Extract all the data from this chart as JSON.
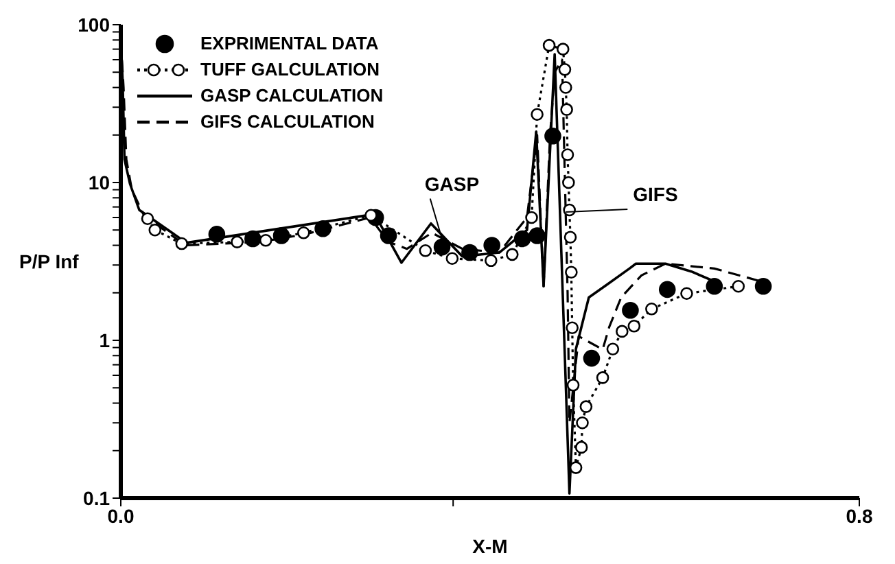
{
  "chart_data": {
    "type": "line",
    "xlabel": "X-M",
    "ylabel": "P/P Inf",
    "log": "y",
    "grid": false,
    "legend": "top left",
    "xlim": [
      0,
      0.8
    ],
    "xticks": [
      {
        "value": 0,
        "label": "0.0"
      },
      {
        "value": 0.36,
        "label": null
      },
      {
        "value": 0.8,
        "label": "0.8"
      }
    ],
    "ylim": [
      0.1,
      100
    ],
    "yticks": [
      0.1,
      {
        "value": 0.2,
        "label": null
      },
      {
        "value": 0.3,
        "label": null
      },
      {
        "value": 0.4,
        "label": null
      },
      {
        "value": 0.5,
        "label": null
      },
      {
        "value": 0.6,
        "label": null
      },
      {
        "value": 0.7,
        "label": null
      },
      {
        "value": 0.8,
        "label": null
      },
      {
        "value": 0.9,
        "label": null
      },
      1,
      {
        "value": 2,
        "label": null
      },
      {
        "value": 3,
        "label": null
      },
      {
        "value": 4,
        "label": null
      },
      {
        "value": 5,
        "label": null
      },
      {
        "value": 6,
        "label": null
      },
      {
        "value": 7,
        "label": null
      },
      {
        "value": 8,
        "label": null
      },
      {
        "value": 9,
        "label": null
      },
      10,
      {
        "value": 20,
        "label": null
      },
      {
        "value": 30,
        "label": null
      },
      {
        "value": 40,
        "label": null
      },
      {
        "value": 50,
        "label": null
      },
      {
        "value": 60,
        "label": null
      },
      {
        "value": 70,
        "label": null
      },
      {
        "value": 80,
        "label": null
      },
      {
        "value": 90,
        "label": null
      },
      100
    ],
    "series": [
      {
        "name": "EXPRIMENTAL DATA",
        "type": "scatter",
        "marker": "circle",
        "color": "#000000",
        "x": [
          0.104,
          0.143,
          0.174,
          0.219,
          0.276,
          0.29,
          0.348,
          0.378,
          0.402,
          0.435,
          0.451,
          0.468,
          0.51,
          0.552,
          0.592,
          0.643,
          0.696
        ],
        "values": [
          4.7,
          4.4,
          4.6,
          5.1,
          6.0,
          4.6,
          3.9,
          3.6,
          4.0,
          4.4,
          4.6,
          19.7,
          0.77,
          1.55,
          2.1,
          2.2,
          2.2
        ]
      },
      {
        "name": "TUFF GALCULATION",
        "marker": "circle",
        "line_style": "dotted",
        "color": "#000000",
        "x": [
          0.029,
          0.037,
          0.066,
          0.126,
          0.157,
          0.198,
          0.271,
          0.33,
          0.359,
          0.401,
          0.424,
          0.445,
          0.451,
          0.464,
          0.479,
          0.481,
          0.482,
          0.483,
          0.484,
          0.485,
          0.486,
          0.487,
          0.488,
          0.489,
          0.49,
          0.493,
          0.499,
          0.5,
          0.504,
          0.522,
          0.533,
          0.543,
          0.556,
          0.575,
          0.613,
          0.669
        ],
        "values": [
          5.9,
          5.0,
          4.1,
          4.2,
          4.3,
          4.8,
          6.2,
          3.7,
          3.3,
          3.2,
          3.5,
          6.0,
          27,
          74,
          70,
          52,
          40,
          29,
          15,
          10,
          6.7,
          4.5,
          2.7,
          1.2,
          0.52,
          0.156,
          0.21,
          0.3,
          0.38,
          0.58,
          0.88,
          1.14,
          1.23,
          1.58,
          1.98,
          2.2
        ]
      },
      {
        "name": "GASP CALCULATION",
        "marker": "none",
        "line_style": "solid",
        "color": "#000000",
        "x": [
          0,
          0.002,
          0.004,
          0.01,
          0.02,
          0.071,
          0.275,
          0.304,
          0.336,
          0.37,
          0.41,
          0.44,
          0.45,
          0.458,
          0.47,
          0.486,
          0.493,
          0.507,
          0.527,
          0.551,
          0.558,
          0.59,
          0.618,
          0.644
        ],
        "values": [
          79,
          44,
          14,
          9.8,
          6.7,
          4.15,
          6.3,
          3.1,
          5.5,
          3.4,
          3.6,
          5.0,
          21,
          2.2,
          65,
          0.107,
          0.88,
          1.87,
          2.26,
          2.85,
          3.06,
          3.06,
          2.73,
          2.35
        ]
      },
      {
        "name": "GIFS CALCULATION",
        "marker": "none",
        "line_style": "dashed",
        "color": "#000000",
        "x": [
          0,
          0.003,
          0.006,
          0.012,
          0.025,
          0.07,
          0.15,
          0.2,
          0.27,
          0.29,
          0.31,
          0.337,
          0.37,
          0.41,
          0.44,
          0.451,
          0.458,
          0.465,
          0.47,
          0.478,
          0.484,
          0.486,
          0.496,
          0.522,
          0.529,
          0.542,
          0.564,
          0.59,
          0.643,
          0.695
        ],
        "values": [
          79,
          40,
          14,
          9,
          6.2,
          4.0,
          4.2,
          4.7,
          6.0,
          4.2,
          3.8,
          4.8,
          3.8,
          3.6,
          6.0,
          20,
          2.2,
          20,
          50,
          60,
          2.0,
          0.3,
          1.06,
          0.875,
          1.21,
          1.87,
          2.58,
          3.06,
          2.85,
          2.35
        ]
      }
    ],
    "annotations": [
      {
        "text": "GASP",
        "x": 0.35,
        "y": 4.0
      },
      {
        "text": "GIFS",
        "x": 0.482,
        "y": 6.5
      }
    ]
  }
}
